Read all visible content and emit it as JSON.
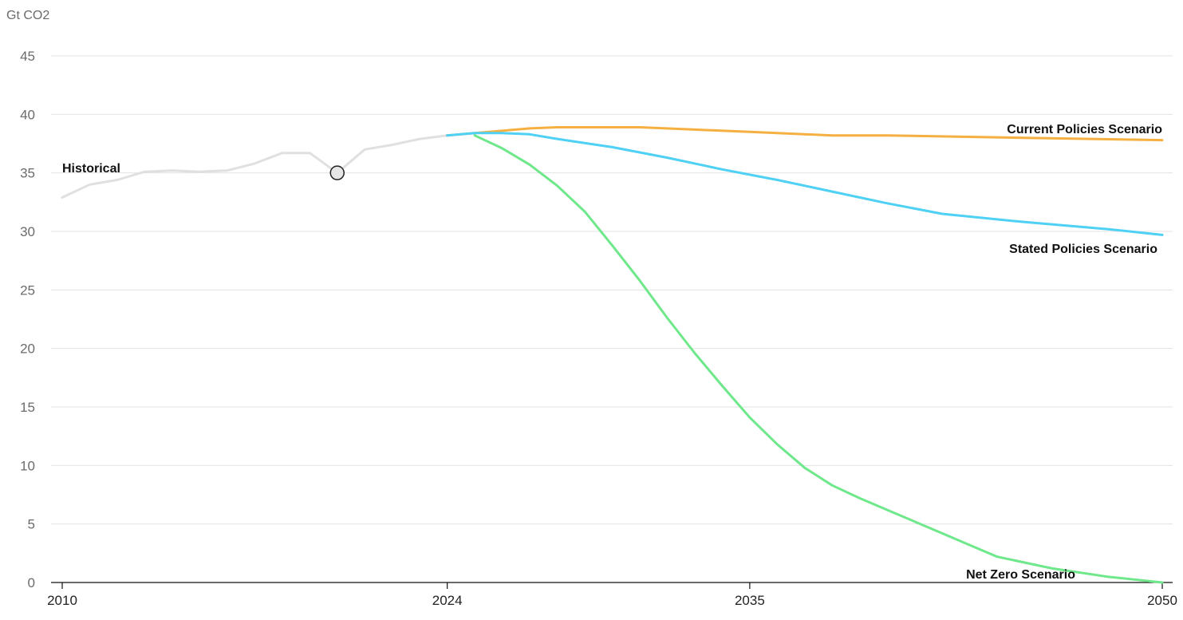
{
  "chart_data": {
    "type": "line",
    "ylabel": "Gt CO2",
    "xlim": [
      2010,
      2050
    ],
    "ylim": [
      0,
      45
    ],
    "y_ticks": [
      0,
      5,
      10,
      15,
      20,
      25,
      30,
      35,
      40,
      45
    ],
    "x_ticks": [
      2010,
      2024,
      2035,
      2050
    ],
    "grid": "horizontal",
    "colors": {
      "historical": "#e0e0e0",
      "current_policies": "#f5b041",
      "stated_policies": "#4fd0f5",
      "net_zero": "#6ee88a",
      "axis": "#111111",
      "grid": "#e3e3e3",
      "marker_fill": "#e6e6e6",
      "marker_stroke": "#222222"
    },
    "highlight_point": {
      "x": 2020,
      "y": 35.0
    },
    "series": [
      {
        "key": "historical",
        "name": "Historical",
        "points": [
          [
            2010,
            32.9
          ],
          [
            2011,
            34.0
          ],
          [
            2012,
            34.4
          ],
          [
            2013,
            35.1
          ],
          [
            2014,
            35.2
          ],
          [
            2015,
            35.1
          ],
          [
            2016,
            35.2
          ],
          [
            2017,
            35.8
          ],
          [
            2018,
            36.7
          ],
          [
            2019,
            36.7
          ],
          [
            2020,
            35.0
          ],
          [
            2021,
            37.0
          ],
          [
            2022,
            37.4
          ],
          [
            2023,
            37.9
          ],
          [
            2024,
            38.2
          ]
        ]
      },
      {
        "key": "current_policies",
        "name": "Current Policies Scenario",
        "points": [
          [
            2024,
            38.2
          ],
          [
            2025,
            38.4
          ],
          [
            2026,
            38.6
          ],
          [
            2027,
            38.8
          ],
          [
            2028,
            38.9
          ],
          [
            2030,
            38.9
          ],
          [
            2031,
            38.9
          ],
          [
            2033,
            38.7
          ],
          [
            2035,
            38.5
          ],
          [
            2038,
            38.2
          ],
          [
            2040,
            38.2
          ],
          [
            2045,
            38.0
          ],
          [
            2050,
            37.8
          ]
        ]
      },
      {
        "key": "stated_policies",
        "name": "Stated Policies Scenario",
        "points": [
          [
            2024,
            38.2
          ],
          [
            2025,
            38.4
          ],
          [
            2026,
            38.4
          ],
          [
            2027,
            38.3
          ],
          [
            2028,
            37.9
          ],
          [
            2030,
            37.2
          ],
          [
            2032,
            36.3
          ],
          [
            2034,
            35.3
          ],
          [
            2036,
            34.4
          ],
          [
            2038,
            33.4
          ],
          [
            2040,
            32.4
          ],
          [
            2042,
            31.5
          ],
          [
            2045,
            30.8
          ],
          [
            2048,
            30.2
          ],
          [
            2050,
            29.7
          ]
        ]
      },
      {
        "key": "net_zero",
        "name": "Net Zero Scenario",
        "points": [
          [
            2025,
            38.2
          ],
          [
            2026,
            37.1
          ],
          [
            2027,
            35.7
          ],
          [
            2028,
            33.9
          ],
          [
            2029,
            31.7
          ],
          [
            2030,
            28.8
          ],
          [
            2031,
            25.8
          ],
          [
            2032,
            22.6
          ],
          [
            2033,
            19.6
          ],
          [
            2034,
            16.8
          ],
          [
            2035,
            14.1
          ],
          [
            2036,
            11.8
          ],
          [
            2037,
            9.8
          ],
          [
            2038,
            8.3
          ],
          [
            2039,
            7.2
          ],
          [
            2040,
            6.2
          ],
          [
            2041,
            5.2
          ],
          [
            2042,
            4.2
          ],
          [
            2043,
            3.2
          ],
          [
            2044,
            2.2
          ],
          [
            2046,
            1.2
          ],
          [
            2048,
            0.5
          ],
          [
            2050,
            0.0
          ]
        ]
      }
    ]
  }
}
